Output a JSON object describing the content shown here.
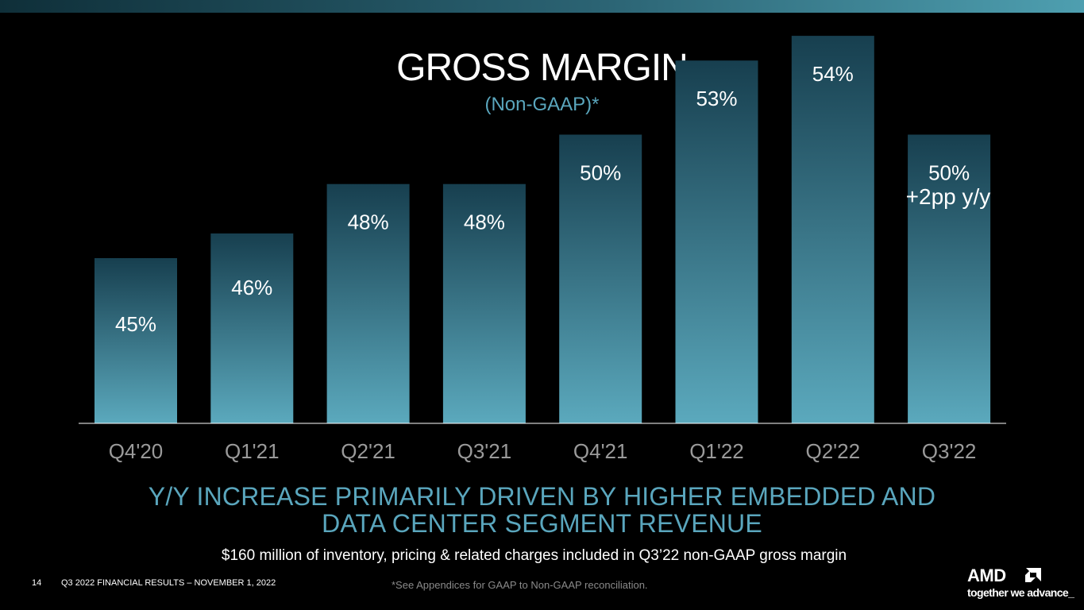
{
  "header": {
    "title": "GROSS MARGIN",
    "subtitle": "(Non-GAAP)*"
  },
  "chart_data": {
    "type": "bar",
    "categories": [
      "Q4'20",
      "Q1'21",
      "Q2'21",
      "Q3'21",
      "Q4'21",
      "Q1'22",
      "Q2'22",
      "Q3'22"
    ],
    "values": [
      45,
      46,
      48,
      48,
      50,
      53,
      54,
      50
    ],
    "data_labels": [
      "45%",
      "46%",
      "48%",
      "48%",
      "50%",
      "53%",
      "54%",
      "50%"
    ],
    "annotation": "+2pp y/y",
    "xlabel": "",
    "ylabel": "",
    "grid": false,
    "colors": {
      "bar_top": "#173f4f",
      "bar_bottom": "#5ba9bd",
      "axis_tick_label": "#9a9a9a",
      "axis_line": "#ffffff"
    }
  },
  "headline": {
    "line1": "Y/Y INCREASE PRIMARILY DRIVEN BY HIGHER EMBEDDED AND",
    "line2": "DATA CENTER SEGMENT REVENUE"
  },
  "note": "$160 million of inventory, pricing & related charges included in Q3’22 non-GAAP gross margin",
  "footer": {
    "page_number": "14",
    "text": "Q3 2022 FINANCIAL RESULTS – NOVEMBER 1, 2022",
    "disclaimer": "*See Appendices for GAAP to Non-GAAP reconciliation."
  },
  "logo": {
    "wordmark": "AMD",
    "tagline": "together we advance_"
  },
  "colors": {
    "accent": "#5aa6bd",
    "background": "#000000"
  }
}
